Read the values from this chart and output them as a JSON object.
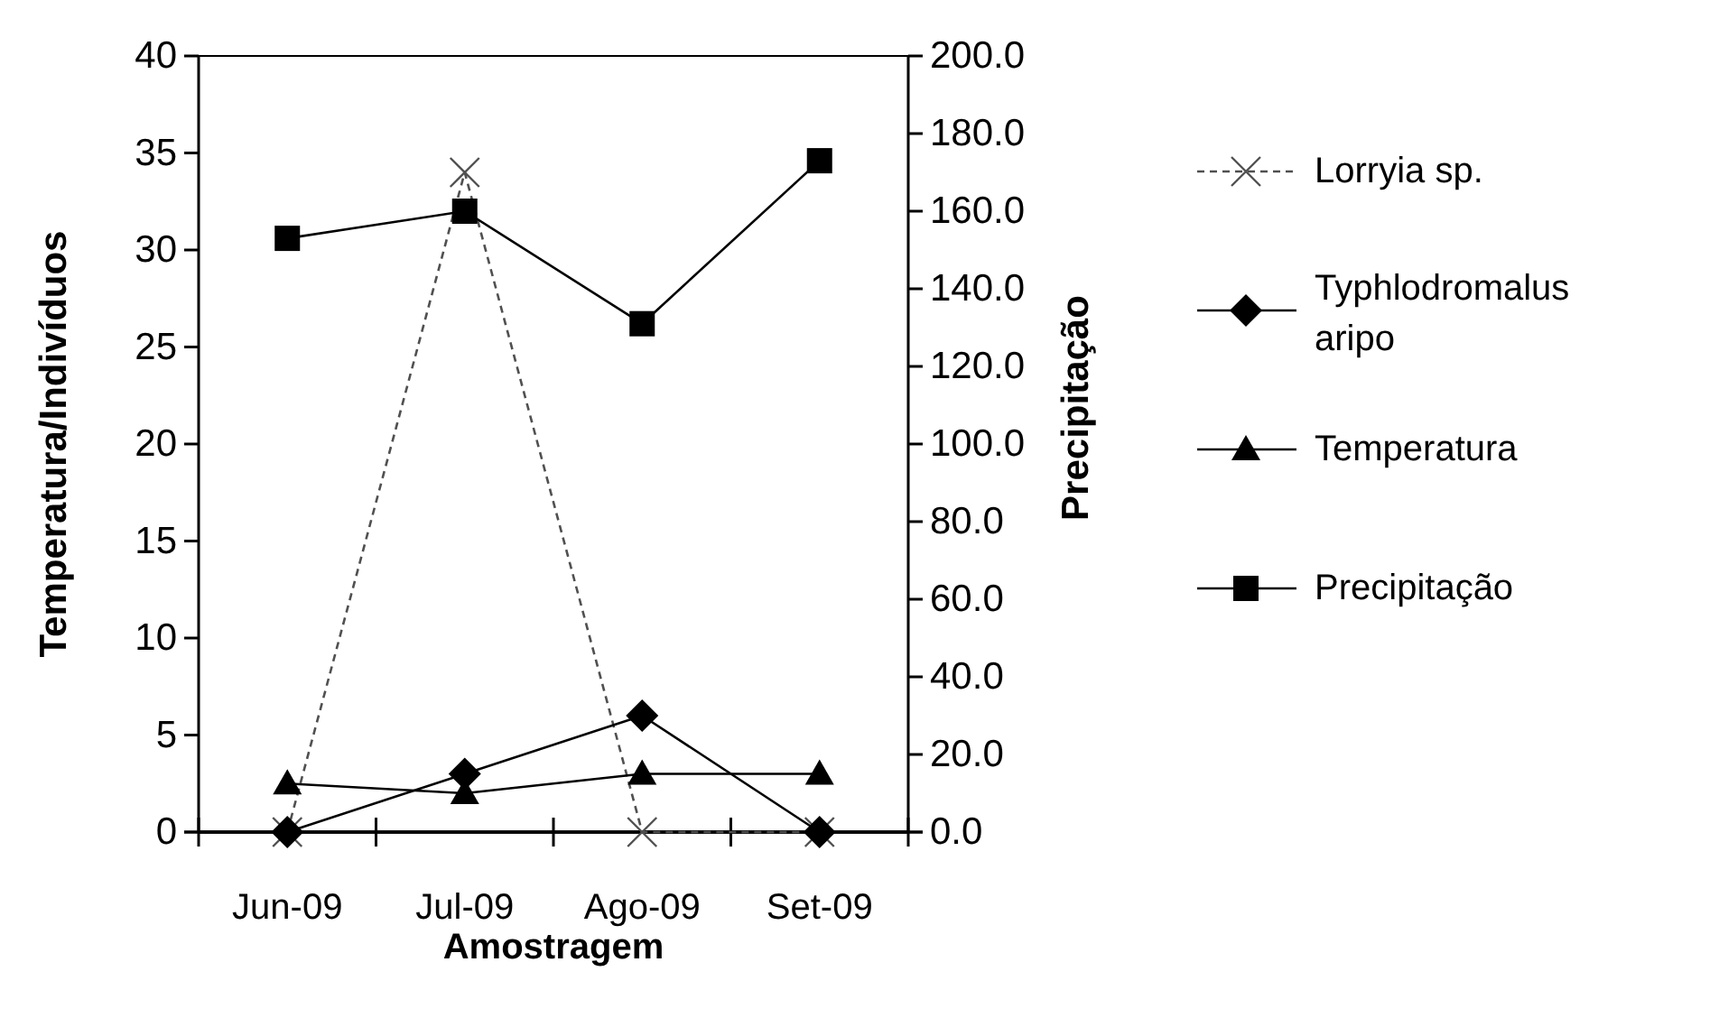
{
  "chart_data": {
    "type": "line",
    "xlabel": "Amostragem",
    "ylabel": "Temperatura/Indivíduos",
    "y2label": "Precipitação",
    "categories": [
      "Jun-09",
      "Jul-09",
      "Ago-09",
      "Set-09"
    ],
    "series": [
      {
        "name": "Lorryia sp.",
        "color": "#505050",
        "values": [
          0,
          34,
          0,
          0
        ],
        "marker": "cross",
        "line_style": "dashed"
      },
      {
        "name": "Typhlodromalus aripo",
        "color": "#000000",
        "values": [
          0,
          3,
          6,
          0
        ],
        "marker": "diamond",
        "line_style": "solid"
      },
      {
        "name": "Temperatura",
        "color": "#000000",
        "values": [
          2.5,
          2,
          3,
          3
        ],
        "marker": "triangle",
        "line_style": "solid"
      },
      {
        "name": "Precipitação",
        "color": "#000000",
        "values": [
          153,
          160,
          131,
          173
        ],
        "marker": "square",
        "line_style": "solid",
        "axis": "y2"
      }
    ],
    "ylim": [
      0,
      40
    ],
    "yticks": [
      0,
      5,
      10,
      15,
      20,
      25,
      30,
      35,
      40
    ],
    "y2lim": [
      0,
      200
    ],
    "y2ticks": [
      {
        "value": 0,
        "label": "0.0"
      },
      {
        "value": 20,
        "label": "20.0"
      },
      {
        "value": 40,
        "label": "40.0"
      },
      {
        "value": 60,
        "label": "60.0"
      },
      {
        "value": 80,
        "label": "80.0"
      },
      {
        "value": 100,
        "label": "100.0"
      },
      {
        "value": 120,
        "label": "120.0"
      },
      {
        "value": 140,
        "label": "140.0"
      },
      {
        "value": 160,
        "label": "160.0"
      },
      {
        "value": 180,
        "label": "180.0"
      },
      {
        "value": 200,
        "label": "200.0"
      }
    ],
    "legend": "right",
    "grid": false
  }
}
